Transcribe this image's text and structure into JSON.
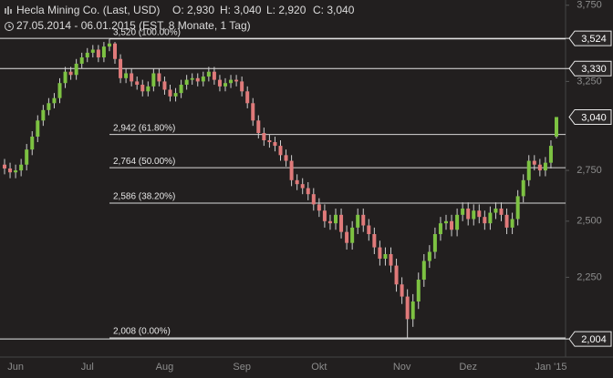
{
  "chart_data": {
    "type": "candlestick",
    "title": "Hecla Mining Co. (Last, USD)",
    "ohlc_labels": [
      "O: 2,930",
      "H: 3,040",
      "L: 2,920",
      "C: 3,040"
    ],
    "subtitle": "27.05.2014 - 06.01.2015 (EST, 8 Monate, 1 Tag)",
    "log_scale": true,
    "up_color": "#7dc242",
    "down_color": "#e07a7a",
    "categories": [
      null,
      null,
      "Jun",
      null,
      null,
      null,
      null,
      null,
      null,
      null,
      null,
      null,
      null,
      null,
      null,
      "Jul",
      null,
      null,
      null,
      null,
      null,
      null,
      null,
      null,
      null,
      null,
      null,
      null,
      null,
      "Aug",
      null,
      null,
      null,
      null,
      null,
      null,
      null,
      null,
      null,
      null,
      null,
      null,
      null,
      "Sep",
      null,
      null,
      null,
      null,
      null,
      null,
      null,
      null,
      null,
      null,
      null,
      null,
      null,
      "Okt",
      null,
      null,
      null,
      null,
      null,
      null,
      null,
      null,
      null,
      null,
      null,
      null,
      null,
      null,
      "Nov",
      null,
      null,
      null,
      null,
      null,
      null,
      null,
      null,
      null,
      null,
      null,
      "Dez",
      null,
      null,
      null,
      null,
      null,
      null,
      null,
      null,
      null,
      null,
      null,
      null,
      null,
      null,
      "Jan '15",
      null
    ],
    "open": [
      2.78,
      2.76,
      2.74,
      2.75,
      2.78,
      2.86,
      2.93,
      3.02,
      3.08,
      3.12,
      3.15,
      3.24,
      3.31,
      3.29,
      3.36,
      3.4,
      3.43,
      3.45,
      3.4,
      3.47,
      3.49,
      3.39,
      3.27,
      3.3,
      3.25,
      3.23,
      3.19,
      3.22,
      3.3,
      3.25,
      3.2,
      3.16,
      3.18,
      3.23,
      3.26,
      3.27,
      3.25,
      3.28,
      3.31,
      3.26,
      3.22,
      3.24,
      3.26,
      3.25,
      3.19,
      3.12,
      3.02,
      2.95,
      2.91,
      2.9,
      2.88,
      2.83,
      2.8,
      2.7,
      2.68,
      2.66,
      2.63,
      2.58,
      2.55,
      2.5,
      2.49,
      2.53,
      2.45,
      2.4,
      2.47,
      2.53,
      2.48,
      2.44,
      2.38,
      2.33,
      2.35,
      2.3,
      2.22,
      2.17,
      2.08,
      2.15,
      2.24,
      2.32,
      2.36,
      2.44,
      2.49,
      2.5,
      2.46,
      2.53,
      2.56,
      2.51,
      2.55,
      2.52,
      2.49,
      2.54,
      2.56,
      2.53,
      2.47,
      2.51,
      2.62,
      2.7,
      2.8,
      2.78,
      2.75,
      2.79,
      2.93
    ],
    "high": [
      2.81,
      2.79,
      2.78,
      2.81,
      2.89,
      2.96,
      3.05,
      3.11,
      3.15,
      3.18,
      3.27,
      3.34,
      3.34,
      3.39,
      3.43,
      3.46,
      3.48,
      3.48,
      3.5,
      3.52,
      3.5,
      3.42,
      3.33,
      3.33,
      3.28,
      3.26,
      3.25,
      3.33,
      3.33,
      3.28,
      3.23,
      3.21,
      3.26,
      3.29,
      3.3,
      3.3,
      3.31,
      3.34,
      3.34,
      3.29,
      3.27,
      3.29,
      3.29,
      3.28,
      3.22,
      3.15,
      3.05,
      2.98,
      2.94,
      2.93,
      2.91,
      2.86,
      2.83,
      2.73,
      2.71,
      2.69,
      2.66,
      2.61,
      2.58,
      2.53,
      2.56,
      2.56,
      2.48,
      2.5,
      2.56,
      2.56,
      2.51,
      2.47,
      2.41,
      2.38,
      2.38,
      2.33,
      2.25,
      2.2,
      2.18,
      2.27,
      2.35,
      2.39,
      2.47,
      2.52,
      2.53,
      2.53,
      2.56,
      2.59,
      2.59,
      2.58,
      2.58,
      2.55,
      2.57,
      2.59,
      2.59,
      2.56,
      2.54,
      2.65,
      2.73,
      2.83,
      2.83,
      2.81,
      2.82,
      2.91,
      3.04
    ],
    "low": [
      2.73,
      2.71,
      2.71,
      2.72,
      2.75,
      2.83,
      2.9,
      2.99,
      3.05,
      3.09,
      3.12,
      3.21,
      3.26,
      3.26,
      3.33,
      3.37,
      3.4,
      3.37,
      3.37,
      3.44,
      3.36,
      3.24,
      3.24,
      3.22,
      3.2,
      3.16,
      3.16,
      3.19,
      3.22,
      3.17,
      3.13,
      3.13,
      3.15,
      3.2,
      3.23,
      3.22,
      3.22,
      3.25,
      3.23,
      3.19,
      3.19,
      3.21,
      3.22,
      3.16,
      3.09,
      2.99,
      2.92,
      2.88,
      2.87,
      2.85,
      2.8,
      2.77,
      2.67,
      2.65,
      2.63,
      2.6,
      2.55,
      2.52,
      2.47,
      2.46,
      2.46,
      2.42,
      2.37,
      2.37,
      2.44,
      2.45,
      2.41,
      2.35,
      2.3,
      2.3,
      2.27,
      2.19,
      2.14,
      2.004,
      2.05,
      2.12,
      2.21,
      2.29,
      2.33,
      2.41,
      2.46,
      2.43,
      2.43,
      2.5,
      2.48,
      2.48,
      2.49,
      2.46,
      2.46,
      2.51,
      2.5,
      2.44,
      2.44,
      2.48,
      2.59,
      2.67,
      2.75,
      2.72,
      2.72,
      2.76,
      2.92
    ],
    "close": [
      2.76,
      2.74,
      2.75,
      2.78,
      2.86,
      2.93,
      3.02,
      3.08,
      3.12,
      3.15,
      3.24,
      3.31,
      3.29,
      3.36,
      3.4,
      3.43,
      3.45,
      3.4,
      3.47,
      3.49,
      3.39,
      3.27,
      3.3,
      3.25,
      3.23,
      3.19,
      3.22,
      3.3,
      3.25,
      3.2,
      3.16,
      3.18,
      3.23,
      3.26,
      3.27,
      3.25,
      3.28,
      3.31,
      3.26,
      3.22,
      3.24,
      3.26,
      3.25,
      3.19,
      3.12,
      3.02,
      2.95,
      2.91,
      2.9,
      2.88,
      2.83,
      2.8,
      2.7,
      2.68,
      2.66,
      2.63,
      2.58,
      2.55,
      2.5,
      2.49,
      2.53,
      2.45,
      2.4,
      2.47,
      2.53,
      2.48,
      2.44,
      2.38,
      2.33,
      2.35,
      2.3,
      2.22,
      2.17,
      2.08,
      2.15,
      2.24,
      2.32,
      2.36,
      2.44,
      2.49,
      2.5,
      2.46,
      2.53,
      2.56,
      2.51,
      2.55,
      2.52,
      2.49,
      2.54,
      2.56,
      2.53,
      2.47,
      2.51,
      2.62,
      2.7,
      2.8,
      2.78,
      2.75,
      2.79,
      2.88,
      3.04
    ],
    "ylim": [
      1.937,
      3.787
    ],
    "yticks": [
      {
        "value": 2.25,
        "label": "2,250"
      },
      {
        "value": 2.5,
        "label": "2,500"
      },
      {
        "value": 2.75,
        "label": "2,750"
      },
      {
        "value": 3.25,
        "label": "3,250"
      },
      {
        "value": 3.75,
        "label": "3,750"
      }
    ],
    "price_levels": [
      {
        "value": 3.524,
        "label": "3,524"
      },
      {
        "value": 3.33,
        "label": "3,330"
      },
      {
        "value": 2.004,
        "label": "2,004"
      }
    ],
    "last_price": {
      "value": 3.04,
      "label": "3,040"
    },
    "fib_levels": [
      {
        "value": 3.52,
        "label": "3,520 (100.00%)"
      },
      {
        "value": 2.942,
        "label": "2,942 (61.80%)"
      },
      {
        "value": 2.764,
        "label": "2,764 (50.00%)"
      },
      {
        "value": 2.586,
        "label": "2,586 (38.20%)"
      },
      {
        "value": 2.008,
        "label": "2,008 (0.00%)"
      }
    ]
  }
}
